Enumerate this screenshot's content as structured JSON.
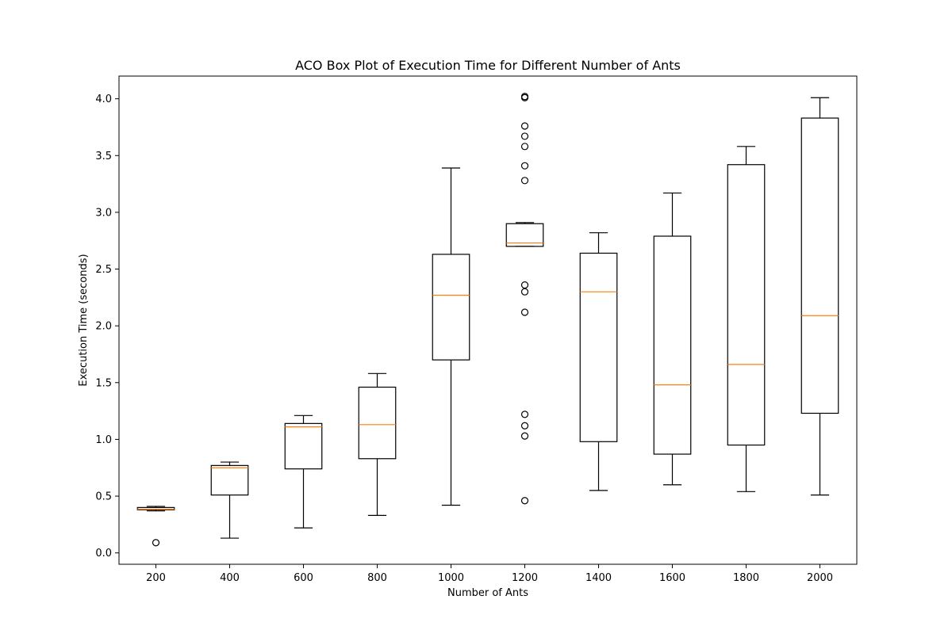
{
  "chart_data": {
    "type": "box",
    "title": "ACO Box Plot of Execution Time for Different Number of Ants",
    "xlabel": "Number of Ants",
    "ylabel": "Execution Time (seconds)",
    "ylim": [
      -0.1,
      4.2
    ],
    "yticks": [
      "0.0",
      "0.5",
      "1.0",
      "1.5",
      "2.0",
      "2.5",
      "3.0",
      "3.5",
      "4.0"
    ],
    "grid": false,
    "categories": [
      "200",
      "400",
      "600",
      "800",
      "1000",
      "1200",
      "1400",
      "1600",
      "1800",
      "2000"
    ],
    "boxes": [
      {
        "whisker_low": 0.37,
        "q1": 0.38,
        "median": 0.385,
        "q3": 0.4,
        "whisker_high": 0.41,
        "outliers": [
          0.09
        ]
      },
      {
        "whisker_low": 0.13,
        "q1": 0.51,
        "median": 0.75,
        "q3": 0.77,
        "whisker_high": 0.8,
        "outliers": []
      },
      {
        "whisker_low": 0.22,
        "q1": 0.74,
        "median": 1.11,
        "q3": 1.14,
        "whisker_high": 1.21,
        "outliers": []
      },
      {
        "whisker_low": 0.33,
        "q1": 0.83,
        "median": 1.13,
        "q3": 1.46,
        "whisker_high": 1.58,
        "outliers": []
      },
      {
        "whisker_low": 0.42,
        "q1": 1.7,
        "median": 2.27,
        "q3": 2.63,
        "whisker_high": 3.39,
        "outliers": []
      },
      {
        "whisker_low": 2.7,
        "q1": 2.7,
        "median": 2.73,
        "q3": 2.9,
        "whisker_high": 2.91,
        "outliers": [
          0.46,
          1.03,
          1.12,
          1.22,
          2.12,
          2.3,
          2.36,
          3.28,
          3.41,
          3.58,
          3.67,
          3.76,
          4.01,
          4.02
        ]
      },
      {
        "whisker_low": 0.55,
        "q1": 0.98,
        "median": 2.3,
        "q3": 2.64,
        "whisker_high": 2.82,
        "outliers": []
      },
      {
        "whisker_low": 0.6,
        "q1": 0.87,
        "median": 1.48,
        "q3": 2.79,
        "whisker_high": 3.17,
        "outliers": []
      },
      {
        "whisker_low": 0.54,
        "q1": 0.95,
        "median": 1.66,
        "q3": 3.42,
        "whisker_high": 3.58,
        "outliers": []
      },
      {
        "whisker_low": 0.51,
        "q1": 1.23,
        "median": 2.09,
        "q3": 3.83,
        "whisker_high": 4.01,
        "outliers": []
      }
    ],
    "colors": {
      "box": "#000000",
      "median": "#ff7f0e",
      "outlier": "#000000"
    }
  }
}
